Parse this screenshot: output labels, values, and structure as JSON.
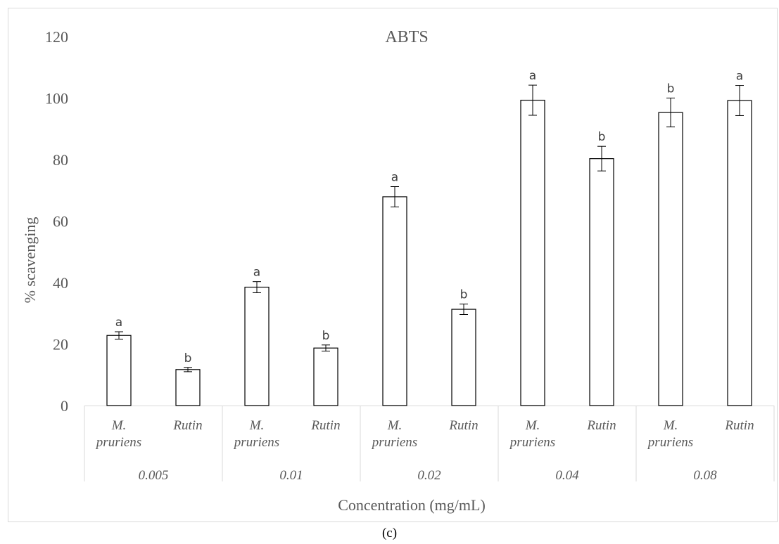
{
  "chart_data": {
    "type": "bar",
    "title": "ABTS",
    "xlabel": "Concentration (mg/mL)",
    "ylabel": "% scavenging",
    "ylim": [
      0,
      120
    ],
    "yticks": [
      0,
      20,
      40,
      60,
      80,
      100,
      120
    ],
    "grid": false,
    "legend": "none",
    "groups": [
      {
        "label": "0.005",
        "bars": [
          {
            "category": "M. pruriens",
            "value": 22.8,
            "error": 1.2,
            "significance": "a"
          },
          {
            "category": "Rutin",
            "value": 11.7,
            "error": 0.7,
            "significance": "b"
          }
        ]
      },
      {
        "label": "0.01",
        "bars": [
          {
            "category": "M. pruriens",
            "value": 38.5,
            "error": 1.8,
            "significance": "a"
          },
          {
            "category": "Rutin",
            "value": 18.7,
            "error": 1.0,
            "significance": "b"
          }
        ]
      },
      {
        "label": "0.02",
        "bars": [
          {
            "category": "M. pruriens",
            "value": 67.9,
            "error": 3.3,
            "significance": "a"
          },
          {
            "category": "Rutin",
            "value": 31.3,
            "error": 1.7,
            "significance": "b"
          }
        ]
      },
      {
        "label": "0.04",
        "bars": [
          {
            "category": "M. pruriens",
            "value": 99.3,
            "error": 4.9,
            "significance": "a"
          },
          {
            "category": "Rutin",
            "value": 80.3,
            "error": 4.0,
            "significance": "b"
          }
        ]
      },
      {
        "label": "0.08",
        "bars": [
          {
            "category": "M. pruriens",
            "value": 95.3,
            "error": 4.7,
            "significance": "b"
          },
          {
            "category": "Rutin",
            "value": 99.2,
            "error": 4.9,
            "significance": "a"
          }
        ]
      }
    ],
    "bar_fill": "#ffffff",
    "bar_stroke": "#000000"
  },
  "caption": "(c)"
}
